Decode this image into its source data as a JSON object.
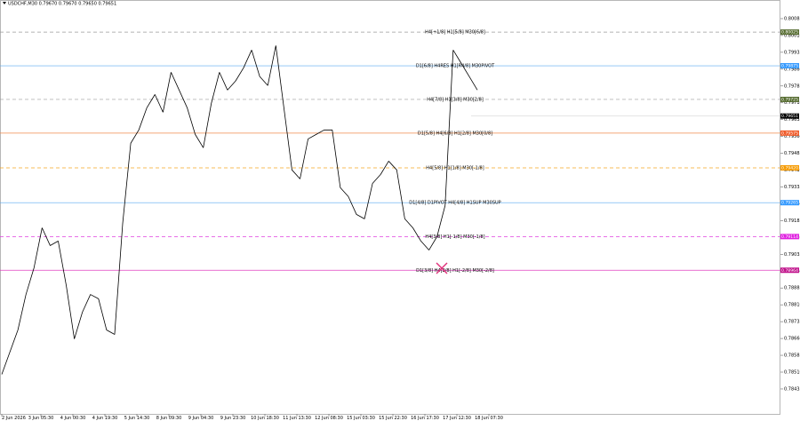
{
  "chart_data": {
    "type": "line",
    "title": "USDCHF,M30 0.79670 0.79670 0.79650 0.79651",
    "color": "#000000",
    "ylim": [
      0.78324,
      0.80168
    ],
    "yticks": [
      {
        "value": 0.78435,
        "label": "0.78435"
      },
      {
        "value": 0.7851,
        "label": "0.78510"
      },
      {
        "value": 0.78585,
        "label": "0.78585"
      },
      {
        "value": 0.7866,
        "label": "0.78660"
      },
      {
        "value": 0.78735,
        "label": "0.78735"
      },
      {
        "value": 0.7881,
        "label": "0.78810"
      },
      {
        "value": 0.78885,
        "label": "0.78885"
      },
      {
        "value": 0.7896,
        "label": "0.78960"
      },
      {
        "value": 0.79035,
        "label": "0.79035"
      },
      {
        "value": 0.7911,
        "label": "0.79110"
      },
      {
        "value": 0.79185,
        "label": "0.79185"
      },
      {
        "value": 0.7926,
        "label": "0.79260"
      },
      {
        "value": 0.79335,
        "label": "0.79335"
      },
      {
        "value": 0.7941,
        "label": "0.79410"
      },
      {
        "value": 0.79485,
        "label": "0.79485"
      },
      {
        "value": 0.7956,
        "label": "0.79560"
      },
      {
        "value": 0.79635,
        "label": "0.79635"
      },
      {
        "value": 0.7971,
        "label": "0.79710"
      },
      {
        "value": 0.79785,
        "label": "0.79785"
      },
      {
        "value": 0.7986,
        "label": "0.79860"
      },
      {
        "value": 0.79935,
        "label": "0.79935"
      },
      {
        "value": 0.8001,
        "label": "0.80010"
      },
      {
        "value": 0.80085,
        "label": "0.80085"
      }
    ],
    "x_labels": [
      "2 Jun 2026",
      "3 Jun 05:30",
      "4 Jun 00:30",
      "4 Jun 19:30",
      "5 Jun 14:30",
      "8 Jun 09:30",
      "9 Jun 04:30",
      "9 Jun 23:30",
      "10 Jun 18:30",
      "11 Jun 13:30",
      "12 Jun 08:30",
      "15 Jun 03:30",
      "15 Jun 22:30",
      "16 Jun 17:30",
      "17 Jun 12:30",
      "18 Jun 07:30"
    ],
    "values": [
      0.785,
      0.78599,
      0.78698,
      0.78856,
      0.78975,
      0.79153,
      0.79074,
      0.79094,
      0.78896,
      0.78658,
      0.78777,
      0.78856,
      0.78837,
      0.78698,
      0.78678,
      0.79173,
      0.7953,
      0.79589,
      0.79688,
      0.79747,
      0.79668,
      0.79846,
      0.79767,
      0.79688,
      0.79569,
      0.7951,
      0.79708,
      0.79846,
      0.79767,
      0.79807,
      0.79866,
      0.79945,
      0.79827,
      0.79787,
      0.79965,
      0.79688,
      0.79411,
      0.79371,
      0.79549,
      0.79569,
      0.79589,
      0.79589,
      0.79332,
      0.79292,
      0.79213,
      0.79193,
      0.79351,
      0.79391,
      0.7945,
      0.79411,
      0.79193,
      0.79153,
      0.79094,
      0.79054,
      0.79114,
      0.79252,
      0.79945,
      0.79886,
      0.79827,
      0.79767
    ],
    "current_price": 0.79651,
    "current_price_label": "0.79651",
    "levels": [
      {
        "label": "H4[+1/8] H1[5/8] M30[6/8]",
        "price": 0.80025,
        "price_label": "0.80025",
        "color": "#9a9a9a",
        "box_color": "#556b2f",
        "dashed": true
      },
      {
        "label": "D1[6/8] H4RES H1[R4/8] M30PIVOT",
        "price": 0.79875,
        "price_label": "0.79875",
        "color": "#5aa9f0",
        "box_color": "#3399ff",
        "dashed": false
      },
      {
        "label": "H4[7/8] H1[3/8] M30[2/8]",
        "price": 0.79725,
        "price_label": "0.79725",
        "color": "#9a9a9a",
        "box_color": "#556b2f",
        "dashed": true
      },
      {
        "label": "D1[5/8] H4[6/8] H1[2/8] M30[0/8]",
        "price": 0.79575,
        "price_label": "0.79575",
        "color": "#f08a4b",
        "box_color": "#f05a28",
        "dashed": false
      },
      {
        "label": "H4[5/8] H1[1/8] M30[-1/8]",
        "price": 0.7942,
        "price_label": "0.79420",
        "color": "#f5a623",
        "box_color": "#f59a00",
        "dashed": true
      },
      {
        "label": "D1[4/8] D1PIVOT H4[4/8] H1SUP M30SUP",
        "price": 0.79265,
        "price_label": "0.79265",
        "color": "#5aa9f0",
        "box_color": "#3399ff",
        "dashed": false
      },
      {
        "label": "H4[3/8] H1[-1/8] M30[-1/8]",
        "price": 0.79114,
        "price_label": "0.79114",
        "color": "#e040e0",
        "box_color": "#e020e0",
        "dashed": true
      },
      {
        "label": "D1[3/8] H4[2/8] H1[-2/8] M30[-2/8]",
        "price": 0.78964,
        "price_label": "0.78964",
        "color": "#e040c0",
        "box_color": "#c0108a",
        "dashed": false
      }
    ]
  }
}
